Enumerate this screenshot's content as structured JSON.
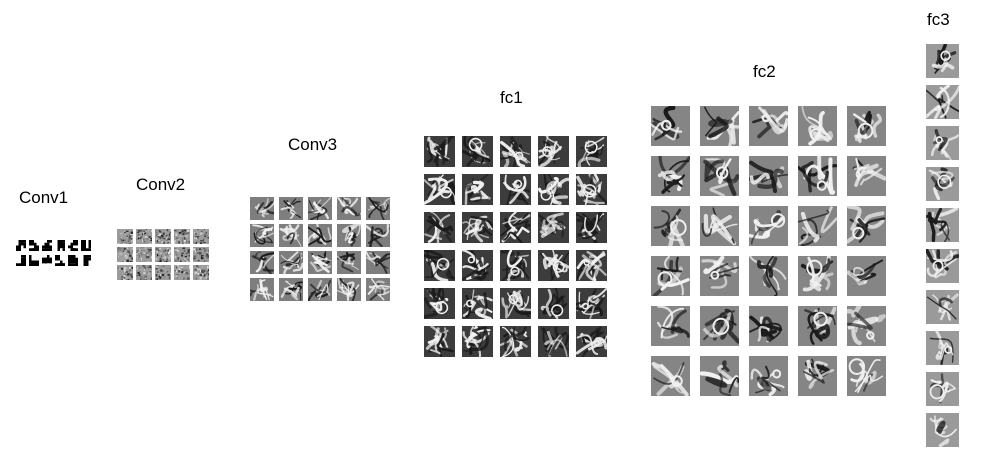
{
  "layers": [
    {
      "id": "conv1",
      "label": "Conv1",
      "rows": 2,
      "cols": 6,
      "style": "binary"
    },
    {
      "id": "conv2",
      "label": "Conv2",
      "rows": 3,
      "cols": 5,
      "style": "noise"
    },
    {
      "id": "conv3",
      "label": "Conv3",
      "rows": 4,
      "cols": 5,
      "style": "texture"
    },
    {
      "id": "fc1",
      "label": "fc1",
      "rows": 6,
      "cols": 5,
      "style": "swirl-dark"
    },
    {
      "id": "fc2",
      "label": "fc2",
      "rows": 6,
      "cols": 5,
      "style": "swirl"
    },
    {
      "id": "fc3",
      "label": "fc3",
      "rows": 10,
      "cols": 1,
      "style": "swirl-light"
    }
  ],
  "colors": {
    "background": "#ffffff",
    "label_text": "#000000",
    "tile_base": "#8a8a8a"
  }
}
